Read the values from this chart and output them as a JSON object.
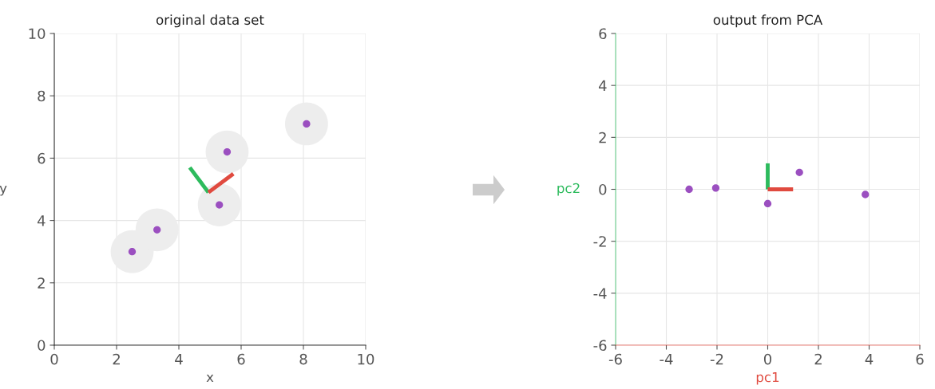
{
  "chart_data": [
    {
      "type": "scatter",
      "title": "original data set",
      "xlabel": "x",
      "ylabel": "y",
      "xlim": [
        0,
        10
      ],
      "ylim": [
        0,
        10
      ],
      "xticks": [
        0,
        2,
        4,
        6,
        8,
        10
      ],
      "yticks": [
        0,
        2,
        4,
        6,
        8,
        10
      ],
      "grid": true,
      "series": [
        {
          "marker": "circle",
          "color": "#ededed",
          "x": [
            2.5,
            3.3,
            5.3,
            5.55,
            8.1
          ],
          "values": [
            3.0,
            3.7,
            4.5,
            6.2,
            7.1
          ]
        },
        {
          "marker": "circle",
          "color": "#9b4fc0",
          "x": [
            2.5,
            3.3,
            5.3,
            5.55,
            8.1
          ],
          "values": [
            3.0,
            3.7,
            4.5,
            6.2,
            7.1
          ]
        },
        {
          "type": "line",
          "marker": "none",
          "color": "#2dbb5d",
          "x": [
            4.95,
            4.35
          ],
          "values": [
            4.9,
            5.7
          ]
        },
        {
          "type": "line",
          "marker": "none",
          "color": "#e04a3f",
          "x": [
            4.95,
            5.75
          ],
          "values": [
            4.9,
            5.5
          ]
        }
      ]
    },
    {
      "type": "scatter",
      "title": "output from PCA",
      "xlabel": "pc1",
      "ylabel": "pc2",
      "xlim": [
        -6,
        6
      ],
      "ylim": [
        -6,
        6
      ],
      "xticks": [
        -6,
        -4,
        -2,
        0,
        2,
        4,
        6
      ],
      "yticks": [
        -6,
        -4,
        -2,
        0,
        2,
        4,
        6
      ],
      "grid": true,
      "series": [
        {
          "marker": "circle",
          "color": "#9b4fc0",
          "x": [
            -3.1,
            -2.05,
            0,
            1.25,
            3.85
          ],
          "values": [
            0,
            0.05,
            -0.55,
            0.65,
            -0.2
          ]
        },
        {
          "type": "line",
          "marker": "none",
          "color": "#2dbb5d",
          "x": [
            0,
            0
          ],
          "values": [
            0,
            1
          ]
        },
        {
          "type": "line",
          "marker": "none",
          "color": "#e04a3f",
          "x": [
            0,
            1
          ],
          "values": [
            0,
            0
          ]
        }
      ]
    }
  ]
}
